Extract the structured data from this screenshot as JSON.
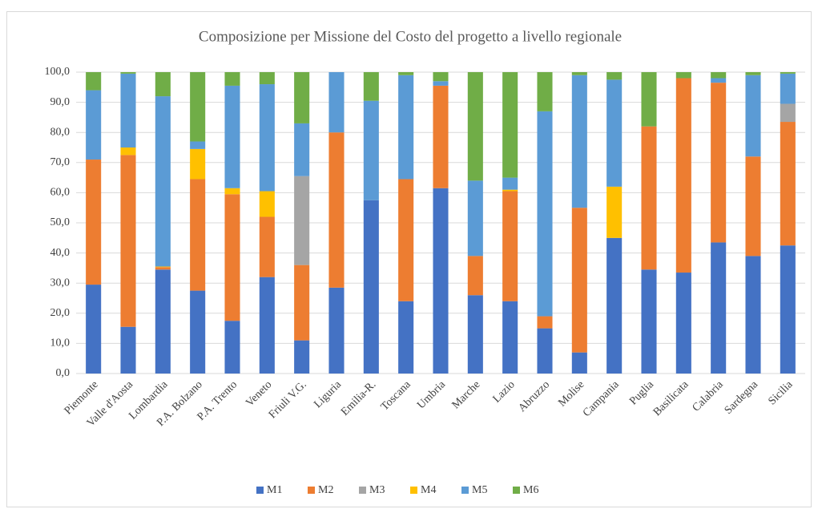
{
  "chart_data": {
    "type": "stacked-bar",
    "title": "Composizione per Missione del Costo del progetto a livello regionale",
    "categories": [
      "Piemonte",
      "Valle d'Aosta",
      "Lombardia",
      "P.A. Bolzano",
      "P.A. Trento",
      "Veneto",
      "Friuli V.G.",
      "Liguria",
      "Emilia-R.",
      "Toscana",
      "Umbria",
      "Marche",
      "Lazio",
      "Abruzzo",
      "Molise",
      "Campania",
      "Puglia",
      "Basilicata",
      "Calabria",
      "Sardegna",
      "Sicilia"
    ],
    "series": [
      {
        "name": "M1",
        "color": "#4472c4",
        "values": [
          29.5,
          15.5,
          34.5,
          27.5,
          17.5,
          32,
          11,
          28.5,
          57.5,
          24,
          61.5,
          26,
          24,
          15,
          7,
          45,
          34.5,
          33.5,
          43.5,
          39,
          42.5
        ]
      },
      {
        "name": "M2",
        "color": "#ed7d31",
        "values": [
          41.5,
          57,
          0.8,
          37,
          42,
          20,
          25,
          51.5,
          0,
          40.5,
          34,
          13,
          36.5,
          4,
          48,
          0,
          47.5,
          64.5,
          53,
          33,
          41
        ]
      },
      {
        "name": "M3",
        "color": "#a5a5a5",
        "values": [
          0,
          0,
          0,
          0,
          0,
          0,
          29.5,
          0,
          0,
          0,
          0,
          0,
          0,
          0,
          0,
          0,
          0,
          0,
          0,
          0,
          6
        ]
      },
      {
        "name": "M4",
        "color": "#ffc000",
        "values": [
          0,
          2.5,
          0.2,
          10,
          2,
          8.5,
          0,
          0,
          0,
          0,
          0,
          0,
          0.5,
          0,
          0,
          17,
          0,
          0,
          0,
          0,
          0
        ]
      },
      {
        "name": "M5",
        "color": "#5b9bd5",
        "values": [
          23,
          24.5,
          56.5,
          2.5,
          34,
          35.5,
          17.5,
          20,
          33,
          34.5,
          1.5,
          25,
          4,
          68,
          44,
          35.5,
          0,
          0,
          1.5,
          27,
          10
        ]
      },
      {
        "name": "M6",
        "color": "#70ad47",
        "values": [
          6,
          0.5,
          8,
          23,
          4.5,
          4,
          17,
          0,
          9.5,
          1,
          3,
          36,
          35,
          13,
          1,
          2.5,
          18,
          2,
          2,
          1,
          0.5
        ]
      }
    ],
    "ylim": [
      0,
      100
    ],
    "yticks": [
      {
        "value": 0,
        "label": "0,0"
      },
      {
        "value": 10,
        "label": "10,0"
      },
      {
        "value": 20,
        "label": "20,0"
      },
      {
        "value": 30,
        "label": "30,0"
      },
      {
        "value": 40,
        "label": "40,0"
      },
      {
        "value": 50,
        "label": "50,0"
      },
      {
        "value": 60,
        "label": "60,0"
      },
      {
        "value": 70,
        "label": "70,0"
      },
      {
        "value": 80,
        "label": "80,0"
      },
      {
        "value": 90,
        "label": "90,0"
      },
      {
        "value": 100,
        "label": "100,0"
      }
    ],
    "grid": true,
    "legend": "bottom"
  }
}
